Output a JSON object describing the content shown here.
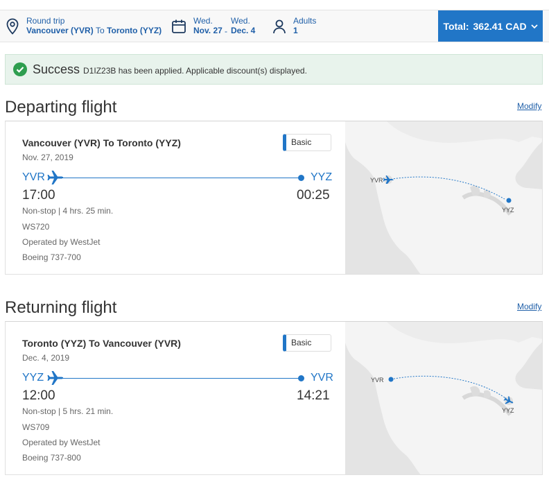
{
  "header": {
    "trip_type": "Round trip",
    "route_from": "Vancouver (YVR)",
    "route_to_word": "To",
    "route_to": "Toronto (YYZ)",
    "depart_day": "Wed.",
    "depart_date": "Nov. 27",
    "date_sep": "-",
    "return_day": "Wed.",
    "return_date": "Dec. 4",
    "pax_label": "Adults",
    "pax_count": "1",
    "total_label": "Total:",
    "total_amount": "362.41 CAD"
  },
  "success": {
    "word": "Success",
    "message": "D1IZ23B has been applied. Applicable discount(s) displayed."
  },
  "departing": {
    "section_title": "Departing flight",
    "modify": "Modify",
    "route": "Vancouver (YVR) To Toronto (YYZ)",
    "date": "Nov. 27, 2019",
    "fare": "Basic",
    "origin": "YVR",
    "destination": "YYZ",
    "dep_time": "17:00",
    "arr_time": "00:25",
    "duration": "Non-stop | 4 hrs. 25 min.",
    "flight_no": "WS720",
    "operator": "Operated by WestJet",
    "aircraft": "Boeing 737-700",
    "map_origin": "YVR",
    "map_dest": "YYZ"
  },
  "returning": {
    "section_title": "Returning flight",
    "modify": "Modify",
    "route": "Toronto (YYZ) To Vancouver (YVR)",
    "date": "Dec. 4, 2019",
    "fare": "Basic",
    "origin": "YYZ",
    "destination": "YVR",
    "dep_time": "12:00",
    "arr_time": "14:21",
    "duration": "Non-stop | 5 hrs. 21 min.",
    "flight_no": "WS709",
    "operator": "Operated by WestJet",
    "aircraft": "Boeing 737-800",
    "map_origin": "YVR",
    "map_dest": "YYZ"
  },
  "colors": {
    "accent": "#2176c7",
    "success": "#2e9e4f"
  }
}
